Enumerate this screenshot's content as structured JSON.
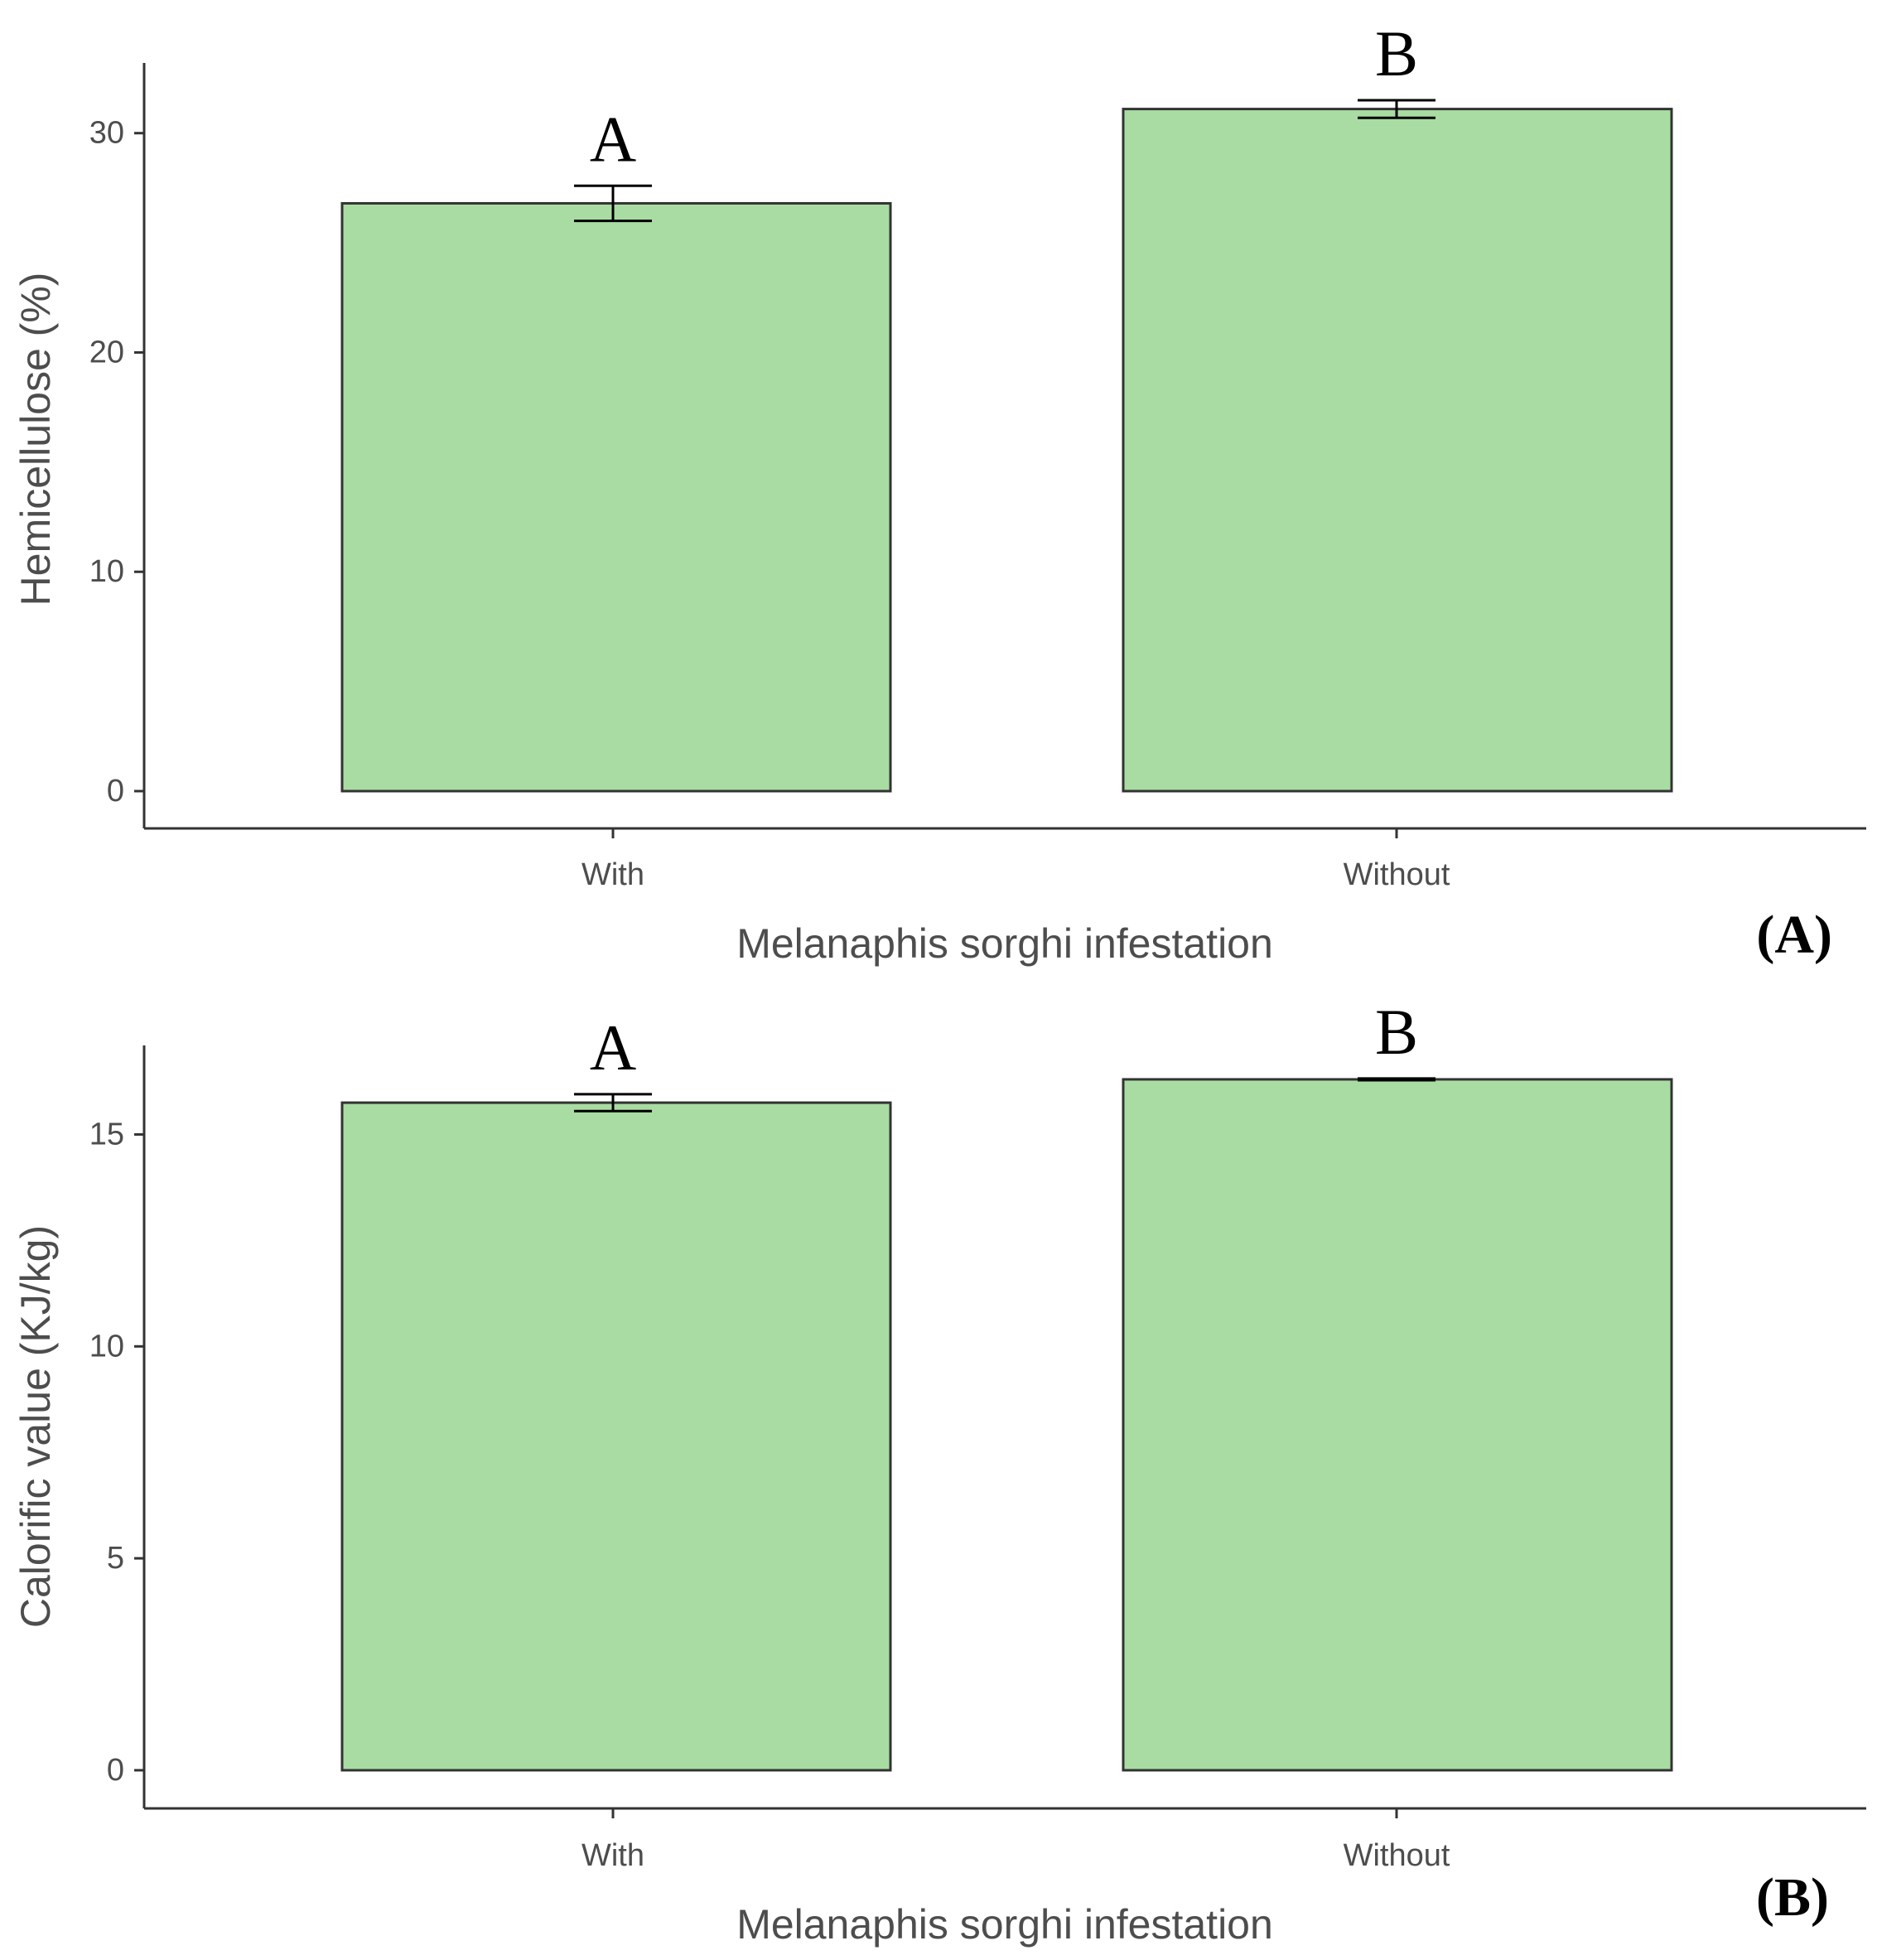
{
  "colors": {
    "bar_fill": "#a9dca3",
    "bar_stroke": "#333333",
    "axis": "#333333",
    "errorbar": "#000000"
  },
  "chart_data": [
    {
      "type": "bar",
      "panel_label": "(A)",
      "categories": [
        "With",
        "Without"
      ],
      "values": [
        26.8,
        31.1
      ],
      "errors": [
        0.8,
        0.4
      ],
      "significance": [
        "A",
        "B"
      ],
      "xlabel": "Melanaphis sorghi infestation",
      "ylabel": "Hemicellulose (%)",
      "yticks": [
        0,
        10,
        20,
        30
      ],
      "ytick_labels": [
        "0",
        "10",
        "20",
        "30"
      ],
      "ylim": [
        -1.7,
        33.2
      ]
    },
    {
      "type": "bar",
      "panel_label": "(B)",
      "categories": [
        "With",
        "Without"
      ],
      "values": [
        15.75,
        16.3
      ],
      "errors": [
        0.2,
        0.02
      ],
      "significance": [
        "A",
        "B"
      ],
      "xlabel": "Melanaphis sorghi infestation",
      "ylabel": "Calorific value (KJ/kg)",
      "yticks": [
        0,
        5,
        10,
        15
      ],
      "ytick_labels": [
        "0",
        "5",
        "10",
        "15"
      ],
      "ylim": [
        -0.9,
        17.1
      ]
    }
  ]
}
